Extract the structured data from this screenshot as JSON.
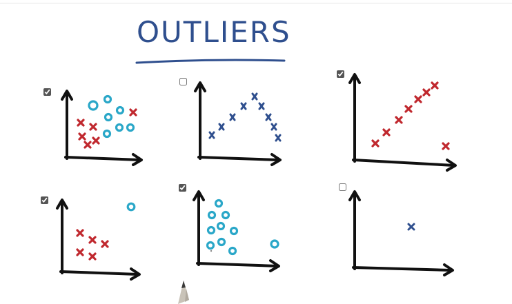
{
  "title": "OUTLIERS",
  "colors": {
    "axis": "#111111",
    "red": "#c0282e",
    "cyan": "#2aa7c8",
    "blue": "#2f4f8e"
  },
  "plots": [
    {
      "id": "plot-1",
      "checked": true
    },
    {
      "id": "plot-2",
      "checked": false
    },
    {
      "id": "plot-3",
      "checked": true
    },
    {
      "id": "plot-4",
      "checked": true
    },
    {
      "id": "plot-5",
      "checked": true
    },
    {
      "id": "plot-6",
      "checked": false
    }
  ]
}
